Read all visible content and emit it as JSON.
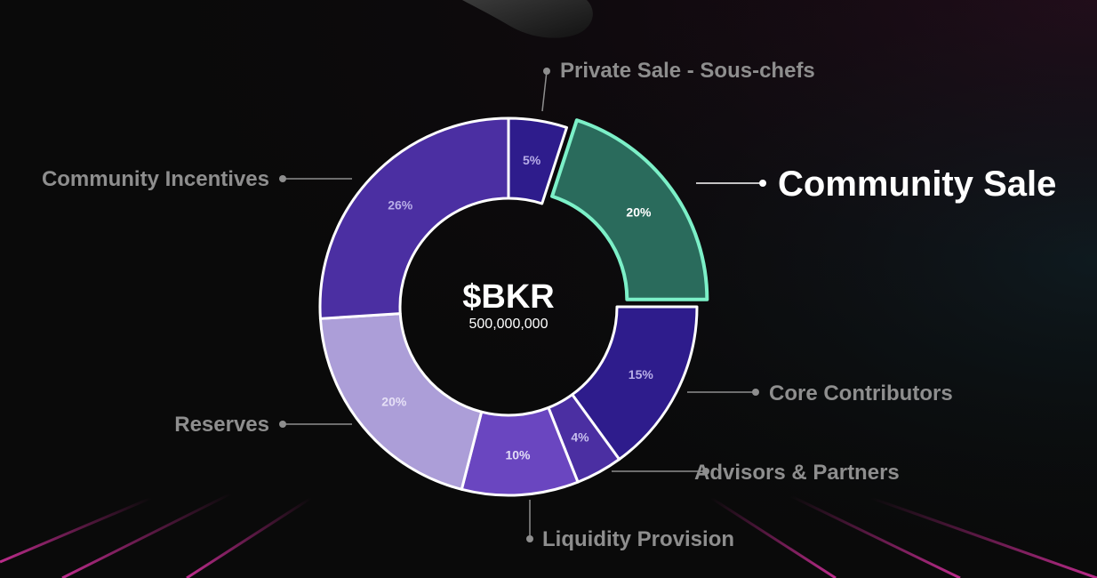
{
  "chart_data": {
    "type": "pie",
    "center_title": "$BKR",
    "center_subtitle": "500,000,000",
    "highlighted": "Community Sale",
    "slices": [
      {
        "name": "Private Sale - Sous-chefs",
        "value": 5,
        "label": "5%",
        "color": "#2e1c8c",
        "label_color": "#b8aee8"
      },
      {
        "name": "Community Sale",
        "value": 20,
        "label": "20%",
        "color": "#2a6b5c",
        "label_color": "#ffffff",
        "stroke": "#7cf0c8",
        "exploded": true
      },
      {
        "name": "Core Contributors",
        "value": 15,
        "label": "15%",
        "color": "#2e1c8c",
        "label_color": "#b8aee8"
      },
      {
        "name": "Advisors & Partners",
        "value": 4,
        "label": "4%",
        "color": "#4b2fa2",
        "label_color": "#c8c0ee"
      },
      {
        "name": "Liquidity Provision",
        "value": 10,
        "label": "10%",
        "color": "#6a46c0",
        "label_color": "#e2dcf6"
      },
      {
        "name": "Reserves",
        "value": 20,
        "label": "20%",
        "color": "#ac9ed8",
        "label_color": "#e6e0f6"
      },
      {
        "name": "Community Incentives",
        "value": 26,
        "label": "26%",
        "color": "#4b2fa2",
        "label_color": "#b8aee8"
      }
    ]
  }
}
